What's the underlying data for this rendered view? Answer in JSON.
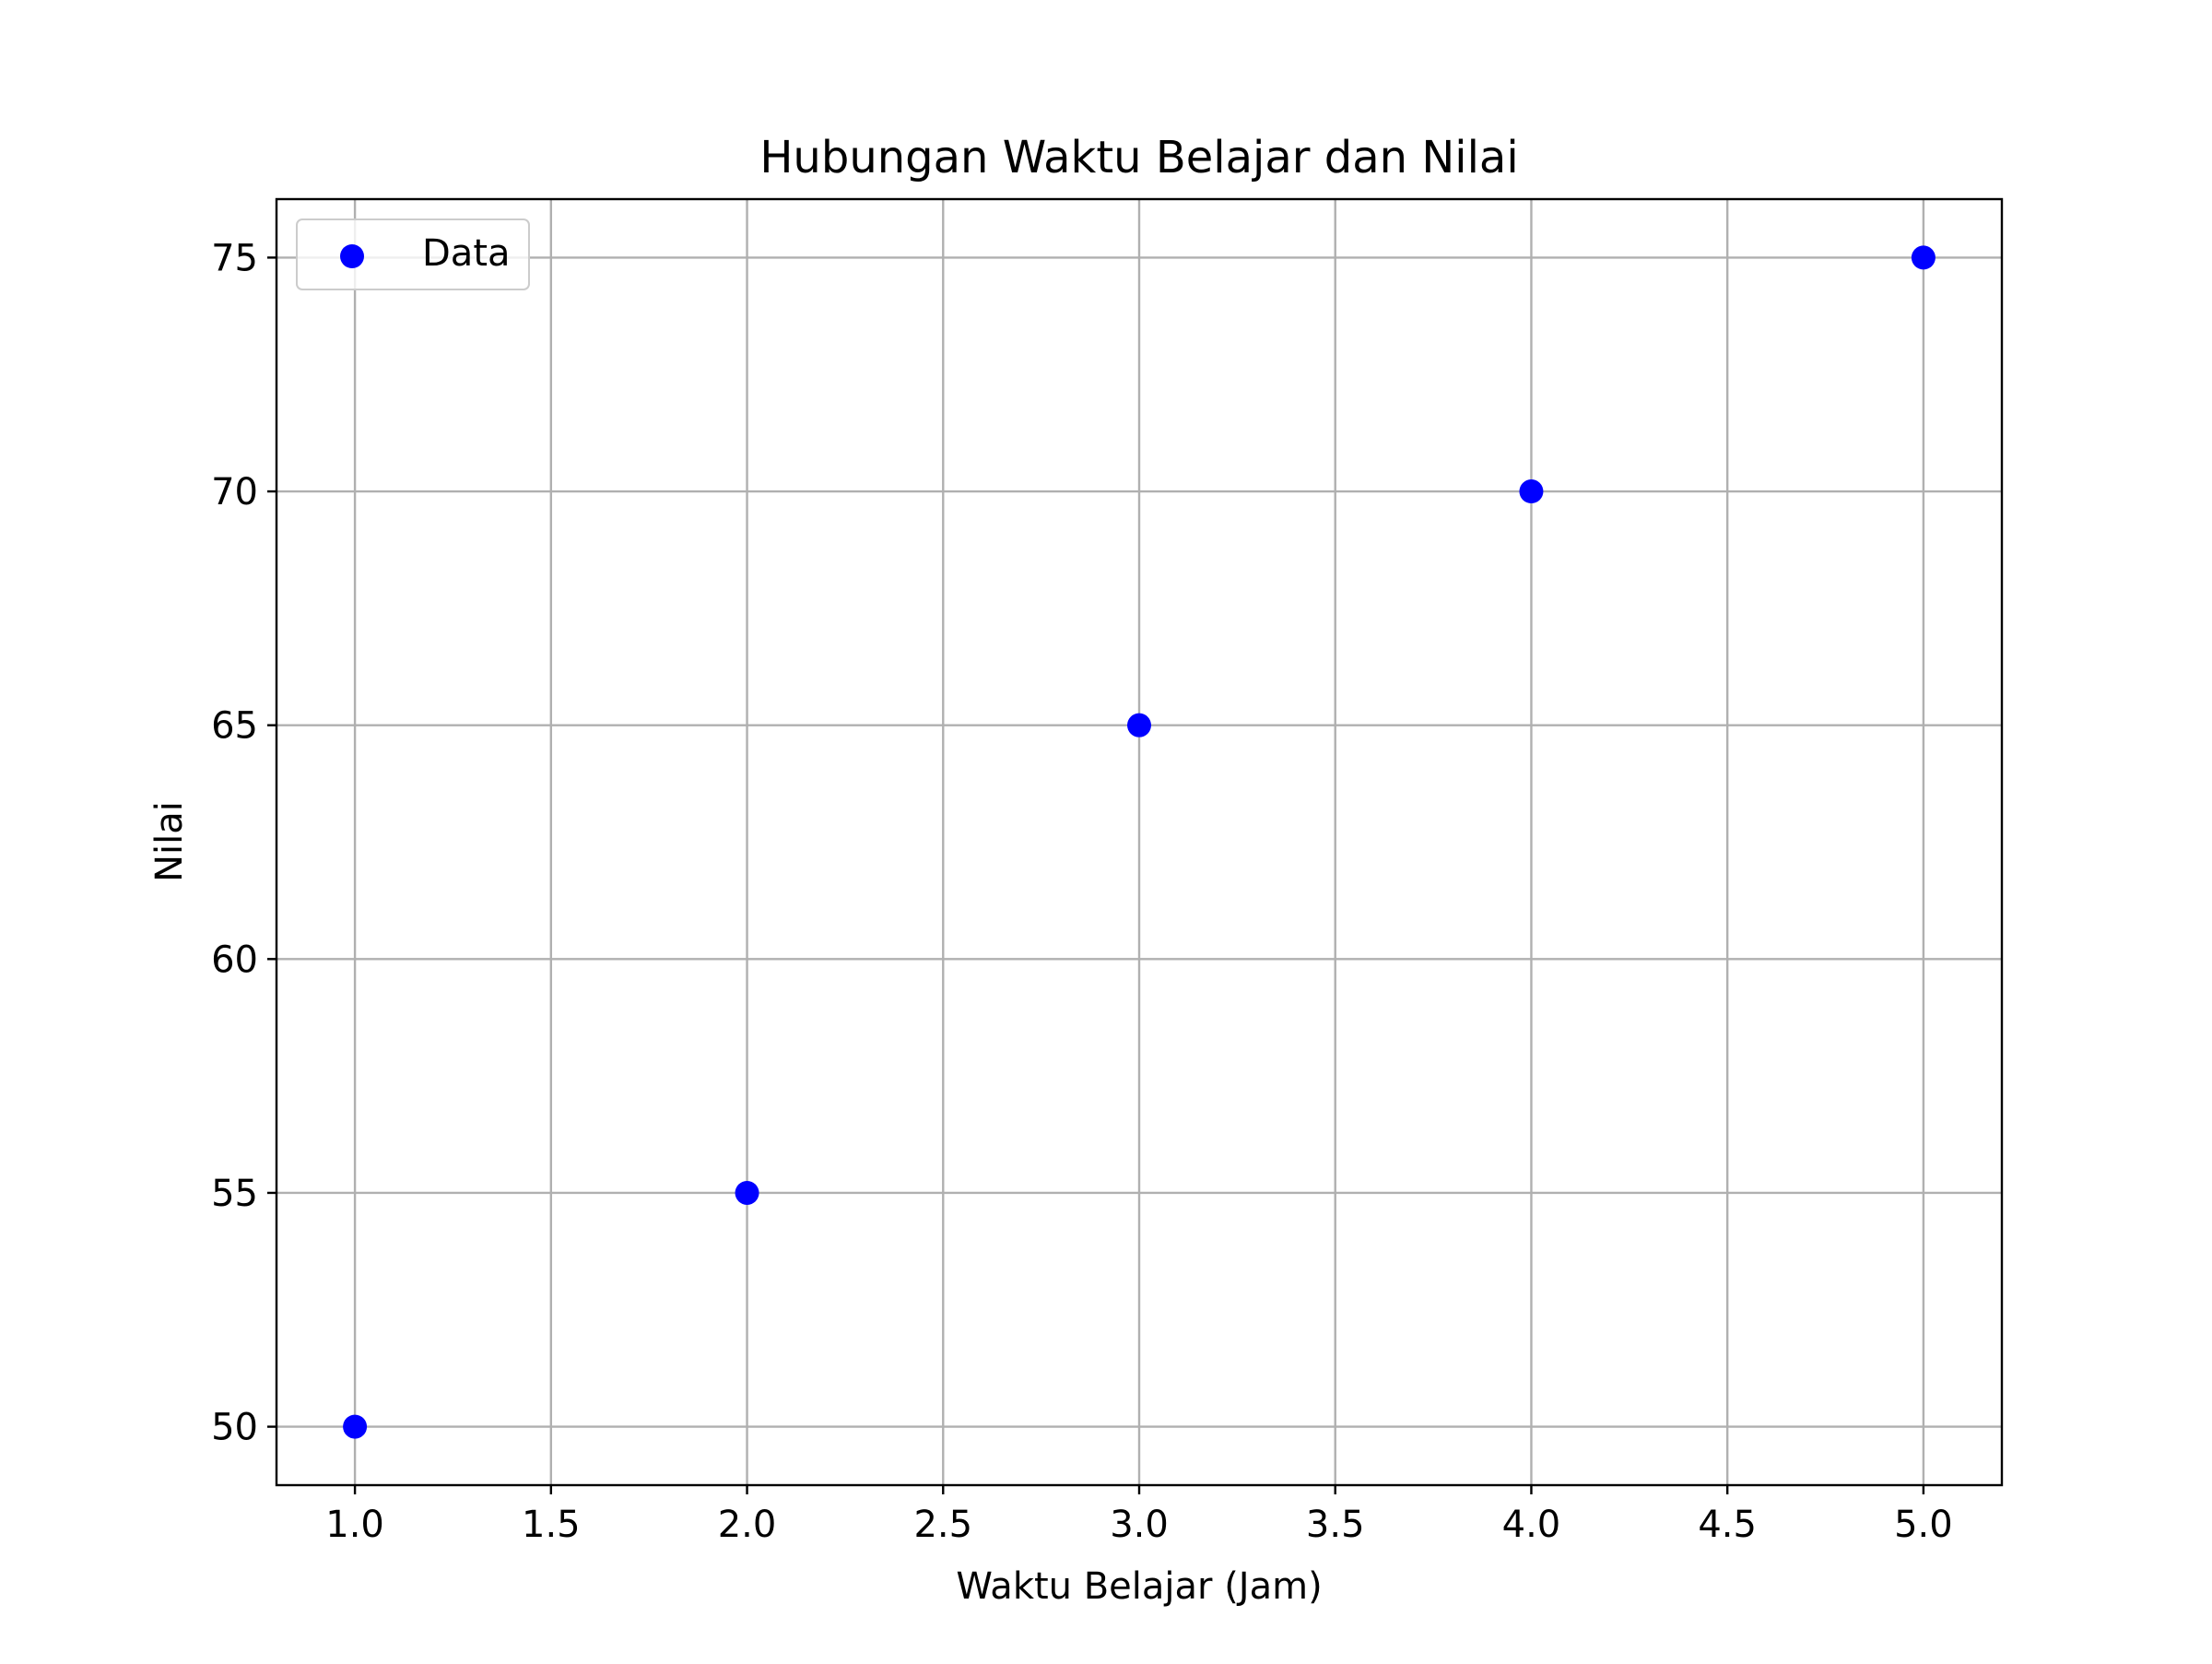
{
  "chart_data": {
    "type": "scatter",
    "title": "Hubungan Waktu Belajar dan Nilai",
    "xlabel": "Waktu Belajar (Jam)",
    "ylabel": "Nilai",
    "xlim": [
      0.8,
      5.2
    ],
    "ylim": [
      48.75,
      76.25
    ],
    "xticks": [
      1.0,
      1.5,
      2.0,
      2.5,
      3.0,
      3.5,
      4.0,
      4.5,
      5.0
    ],
    "xtick_labels": [
      "1.0",
      "1.5",
      "2.0",
      "2.5",
      "3.0",
      "3.5",
      "4.0",
      "4.5",
      "5.0"
    ],
    "yticks": [
      50,
      55,
      60,
      65,
      70,
      75
    ],
    "ytick_labels": [
      "50",
      "55",
      "60",
      "65",
      "70",
      "75"
    ],
    "grid": true,
    "legend_position": "upper-left",
    "series": [
      {
        "name": "Data",
        "color": "#0000ff",
        "x": [
          1,
          2,
          3,
          4,
          5
        ],
        "y": [
          50,
          55,
          65,
          70,
          75
        ]
      }
    ]
  }
}
